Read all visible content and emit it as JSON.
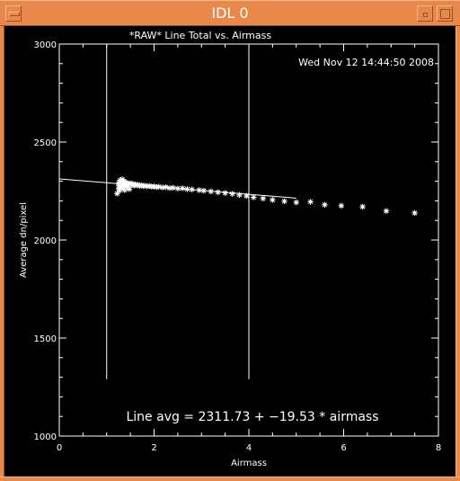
{
  "window": {
    "title": "IDL 0"
  },
  "plot": {
    "timestamp": "Wed Nov 12 14:44:50 2008",
    "annotation": "Line avg = 2311.73 + −19.53 * airmass"
  },
  "colors": {
    "frame": "#e8884a",
    "background": "#000000",
    "foreground": "#ffffff"
  },
  "chart_data": {
    "type": "scatter",
    "title": "*RAW* Line Total vs. Airmass",
    "xlabel": "Airmass",
    "ylabel": "Average dn/pixel",
    "xlim": [
      0,
      8
    ],
    "ylim": [
      1000,
      3000
    ],
    "x_ticks": [
      "0",
      "2",
      "4",
      "6",
      "8"
    ],
    "y_ticks": [
      "1000",
      "1500",
      "2000",
      "2500",
      "3000"
    ],
    "marker": "asterisk",
    "fit_line": {
      "intercept": 2311.73,
      "slope": -19.53,
      "x_start": 0,
      "x_end": 5.0
    },
    "vertical_lines": [
      {
        "x": 1.0,
        "y_from": 1290,
        "y_to": 3000
      },
      {
        "x": 4.0,
        "y_from": 1290,
        "y_to": 3000
      }
    ],
    "points": [
      [
        1.22,
        2237
      ],
      [
        1.25,
        2262
      ],
      [
        1.25,
        2290
      ],
      [
        1.26,
        2278
      ],
      [
        1.27,
        2252
      ],
      [
        1.28,
        2305
      ],
      [
        1.29,
        2270
      ],
      [
        1.3,
        2285
      ],
      [
        1.31,
        2298
      ],
      [
        1.32,
        2265
      ],
      [
        1.33,
        2310
      ],
      [
        1.34,
        2290
      ],
      [
        1.35,
        2275
      ],
      [
        1.36,
        2300
      ],
      [
        1.37,
        2283
      ],
      [
        1.38,
        2255
      ],
      [
        1.39,
        2295
      ],
      [
        1.4,
        2280
      ],
      [
        1.42,
        2293
      ],
      [
        1.44,
        2270
      ],
      [
        1.46,
        2288
      ],
      [
        1.48,
        2260
      ],
      [
        1.5,
        2290
      ],
      [
        1.52,
        2280
      ],
      [
        1.55,
        2286
      ],
      [
        1.58,
        2278
      ],
      [
        1.6,
        2284
      ],
      [
        1.63,
        2280
      ],
      [
        1.66,
        2282
      ],
      [
        1.7,
        2276
      ],
      [
        1.73,
        2280
      ],
      [
        1.77,
        2275
      ],
      [
        1.8,
        2278
      ],
      [
        1.85,
        2274
      ],
      [
        1.9,
        2276
      ],
      [
        1.95,
        2272
      ],
      [
        2.0,
        2274
      ],
      [
        2.05,
        2270
      ],
      [
        2.1,
        2272
      ],
      [
        2.18,
        2268
      ],
      [
        2.25,
        2270
      ],
      [
        2.33,
        2265
      ],
      [
        2.4,
        2267
      ],
      [
        2.5,
        2263
      ],
      [
        2.6,
        2264
      ],
      [
        2.7,
        2260
      ],
      [
        2.8,
        2258
      ],
      [
        2.95,
        2255
      ],
      [
        3.05,
        2252
      ],
      [
        3.2,
        2248
      ],
      [
        3.35,
        2244
      ],
      [
        3.5,
        2240
      ],
      [
        3.65,
        2236
      ],
      [
        3.8,
        2230
      ],
      [
        3.95,
        2225
      ],
      [
        4.1,
        2218
      ],
      [
        4.3,
        2212
      ],
      [
        4.5,
        2205
      ],
      [
        4.75,
        2198
      ],
      [
        5.0,
        2192
      ],
      [
        5.3,
        2195
      ],
      [
        5.6,
        2180
      ],
      [
        5.95,
        2175
      ],
      [
        6.4,
        2170
      ],
      [
        6.9,
        2148
      ],
      [
        7.5,
        2138
      ]
    ]
  }
}
